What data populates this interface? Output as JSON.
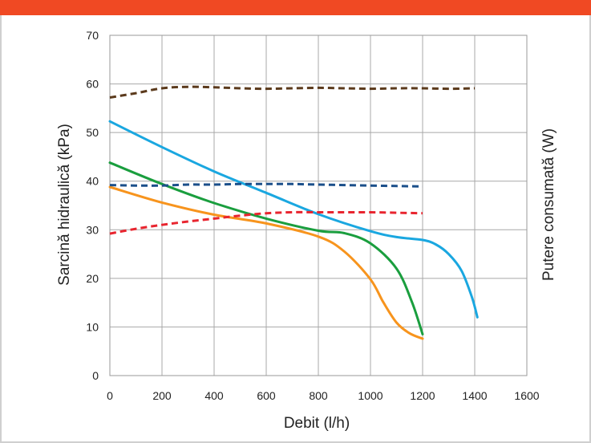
{
  "header": {
    "bar_color": "#f04923"
  },
  "chart_data": {
    "type": "line",
    "xlabel": "Debit (l/h)",
    "ylabel": "Sarcină hidraulică (kPa)",
    "y2label": "Putere consumată (W)",
    "xlim": [
      0,
      1600
    ],
    "ylim": [
      0,
      70
    ],
    "x_ticks": [
      0,
      200,
      400,
      600,
      800,
      1000,
      1200,
      1400,
      1600
    ],
    "y_ticks": [
      0,
      10,
      20,
      30,
      40,
      50,
      60,
      70
    ],
    "grid": true,
    "series": [
      {
        "color": "#1aa7e0",
        "style": "solid",
        "points": [
          [
            0,
            52.3
          ],
          [
            200,
            47
          ],
          [
            400,
            42
          ],
          [
            600,
            37.6
          ],
          [
            800,
            33.2
          ],
          [
            1000,
            29.7
          ],
          [
            1100,
            28.5
          ],
          [
            1200,
            27.9
          ],
          [
            1250,
            27
          ],
          [
            1300,
            25
          ],
          [
            1350,
            21.5
          ],
          [
            1390,
            16
          ],
          [
            1410,
            12
          ]
        ]
      },
      {
        "color": "#1a9e3e",
        "style": "solid",
        "points": [
          [
            0,
            43.8
          ],
          [
            200,
            39.4
          ],
          [
            400,
            35.5
          ],
          [
            600,
            32.3
          ],
          [
            800,
            29.8
          ],
          [
            900,
            29.3
          ],
          [
            1000,
            27.2
          ],
          [
            1100,
            22
          ],
          [
            1160,
            15
          ],
          [
            1200,
            8.5
          ]
        ]
      },
      {
        "color": "#f7941d",
        "style": "solid",
        "points": [
          [
            0,
            38.8
          ],
          [
            200,
            35.6
          ],
          [
            400,
            33.1
          ],
          [
            600,
            31.3
          ],
          [
            800,
            28.6
          ],
          [
            900,
            25.5
          ],
          [
            1000,
            19.8
          ],
          [
            1050,
            15
          ],
          [
            1100,
            10.9
          ],
          [
            1150,
            8.7
          ],
          [
            1200,
            7.6
          ]
        ]
      },
      {
        "color": "#5b3a1c",
        "style": "dashed",
        "points": [
          [
            0,
            57.2
          ],
          [
            100,
            58.1
          ],
          [
            200,
            59.1
          ],
          [
            300,
            59.4
          ],
          [
            400,
            59.3
          ],
          [
            500,
            59.1
          ],
          [
            600,
            59
          ],
          [
            700,
            59.1
          ],
          [
            800,
            59.2
          ],
          [
            900,
            59.1
          ],
          [
            1000,
            59
          ],
          [
            1100,
            59.1
          ],
          [
            1200,
            59.1
          ],
          [
            1300,
            59
          ],
          [
            1400,
            59.1
          ]
        ]
      },
      {
        "color": "#1b4f8a",
        "style": "dashed",
        "points": [
          [
            0,
            39.2
          ],
          [
            100,
            39.1
          ],
          [
            200,
            39.1
          ],
          [
            300,
            39.3
          ],
          [
            400,
            39.3
          ],
          [
            500,
            39.4
          ],
          [
            600,
            39.4
          ],
          [
            700,
            39.4
          ],
          [
            800,
            39.3
          ],
          [
            900,
            39.2
          ],
          [
            1000,
            39.1
          ],
          [
            1100,
            39
          ],
          [
            1200,
            38.9
          ]
        ]
      },
      {
        "color": "#e8252f",
        "style": "dashed",
        "points": [
          [
            0,
            29.2
          ],
          [
            100,
            30.2
          ],
          [
            200,
            31
          ],
          [
            300,
            31.7
          ],
          [
            400,
            32.3
          ],
          [
            500,
            32.9
          ],
          [
            600,
            33.4
          ],
          [
            700,
            33.6
          ],
          [
            800,
            33.6
          ],
          [
            900,
            33.6
          ],
          [
            1000,
            33.6
          ],
          [
            1100,
            33.5
          ],
          [
            1200,
            33.4
          ]
        ]
      }
    ]
  }
}
